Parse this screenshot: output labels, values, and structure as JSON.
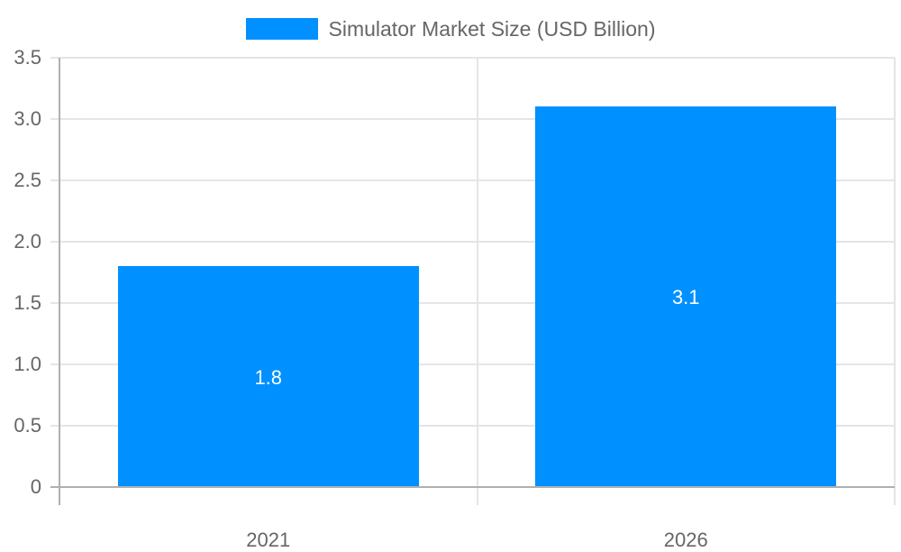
{
  "chart_data": {
    "type": "bar",
    "title": "",
    "categories": [
      "2021",
      "2026"
    ],
    "series": [
      {
        "name": "Simulator Market Size (USD Billion)",
        "values": [
          1.8,
          3.1
        ],
        "color": "#0090ff"
      }
    ],
    "data_labels": [
      "1.8",
      "3.1"
    ],
    "xlabel": "",
    "ylabel": "",
    "ylim": [
      0,
      3.5
    ],
    "yticks": [
      "0",
      "0.5",
      "1.0",
      "1.5",
      "2.0",
      "2.5",
      "3.0",
      "3.5"
    ],
    "grid": true,
    "legend_position": "top"
  },
  "legend": {
    "label": "Simulator Market Size (USD Billion)",
    "color": "#0090ff"
  },
  "colors": {
    "bar": "#0090ff",
    "grid": "#e5e5e5",
    "axis": "#b0b0b0",
    "text": "#666666"
  }
}
